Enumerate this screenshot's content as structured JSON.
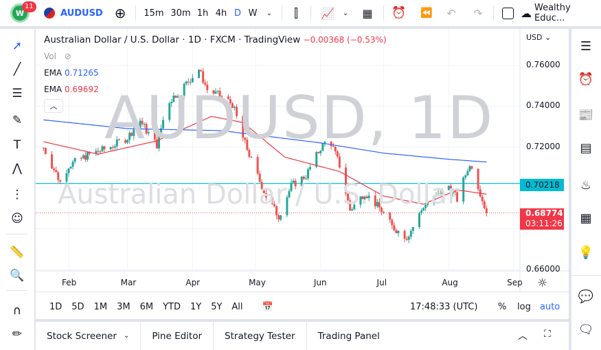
{
  "toolbar": {
    "notifications": "11",
    "logo": "logo-icon",
    "symbol": "AUDUSD",
    "intervals": [
      "15m",
      "30m",
      "1h",
      "4h",
      "D",
      "W"
    ],
    "active_interval": "D",
    "account": "Wealthy Educ..."
  },
  "legend": {
    "title": "Australian Dollar / U.S. Dollar · 1D · FXCM · TradingView",
    "change": "−0.00368 (−0.53%)",
    "vol": "Vol",
    "ema1_label": "EMA",
    "ema1_value": "0.71265",
    "ema2_label": "EMA",
    "ema2_value": "0.69692"
  },
  "watermark": {
    "line1": "AUDUSD, 1D",
    "line2": "Australian Dollar / U.S. Dollar"
  },
  "price_axis": {
    "currency": "USD",
    "ticks": [
      "0.76000",
      "0.74000",
      "0.72000",
      "0.66000"
    ],
    "hline_label": "0.70218",
    "last_price": "0.68774",
    "countdown": "03:11:26"
  },
  "time_axis": {
    "labels": [
      "Feb",
      "Mar",
      "Apr",
      "May",
      "Jun",
      "Jul",
      "Aug",
      "Sep"
    ]
  },
  "range_bar": {
    "ranges": [
      "1D",
      "5D",
      "1M",
      "3M",
      "6M",
      "YTD",
      "1Y",
      "5Y",
      "All"
    ],
    "time": "17:48:33 (UTC)",
    "percent": "%",
    "log": "log",
    "auto": "auto"
  },
  "bottom_tabs": [
    "Stock Screener",
    "Pine Editor",
    "Strategy Tester",
    "Trading Panel"
  ],
  "colors": {
    "up": "#26a69a",
    "down": "#ef5350",
    "ema_slow": "#2962ff",
    "ema_fast": "#f23645",
    "hline": "#00bcd4",
    "accent": "#2962ff"
  },
  "chart_data": {
    "type": "candlestick",
    "ylim": [
      0.655,
      0.768
    ],
    "yticks": [
      0.76,
      0.74,
      0.72,
      0.7,
      0.68,
      0.66
    ],
    "xticks": [
      "2022-02-01",
      "2022-03-01",
      "2022-04-01",
      "2022-05-01",
      "2022-06-01",
      "2022-07-01",
      "2022-08-01",
      "2022-09-01"
    ],
    "close_path": [
      [
        "2022-01-20",
        0.7196
      ],
      [
        "2022-01-28",
        0.7028
      ],
      [
        "2022-02-01",
        0.711
      ],
      [
        "2022-02-10",
        0.716
      ],
      [
        "2022-02-20",
        0.7196
      ],
      [
        "2022-03-01",
        0.7246
      ],
      [
        "2022-03-07",
        0.733
      ],
      [
        "2022-03-10",
        0.728
      ],
      [
        "2022-03-15",
        0.721
      ],
      [
        "2022-03-20",
        0.7415
      ],
      [
        "2022-03-28",
        0.75
      ],
      [
        "2022-04-04",
        0.758
      ],
      [
        "2022-04-08",
        0.748
      ],
      [
        "2022-04-15",
        0.7445
      ],
      [
        "2022-04-20",
        0.741
      ],
      [
        "2022-04-25",
        0.7245
      ],
      [
        "2022-05-01",
        0.708
      ],
      [
        "2022-05-06",
        0.696
      ],
      [
        "2022-05-12",
        0.686
      ],
      [
        "2022-05-18",
        0.701
      ],
      [
        "2022-05-25",
        0.706
      ],
      [
        "2022-06-01",
        0.7196
      ],
      [
        "2022-06-05",
        0.7246
      ],
      [
        "2022-06-10",
        0.711
      ],
      [
        "2022-06-15",
        0.689
      ],
      [
        "2022-06-22",
        0.6977
      ],
      [
        "2022-06-30",
        0.689
      ],
      [
        "2022-07-05",
        0.681
      ],
      [
        "2022-07-12",
        0.676
      ],
      [
        "2022-07-15",
        0.681
      ],
      [
        "2022-07-20",
        0.6911
      ],
      [
        "2022-07-27",
        0.6961
      ],
      [
        "2022-08-01",
        0.701
      ],
      [
        "2022-08-05",
        0.6944
      ],
      [
        "2022-08-10",
        0.7095
      ],
      [
        "2022-08-12",
        0.711
      ],
      [
        "2022-08-15",
        0.701
      ],
      [
        "2022-08-17",
        0.6944
      ],
      [
        "2022-08-19",
        0.6877
      ]
    ],
    "ema_slow": [
      [
        "2022-01-20",
        0.7333
      ],
      [
        "2022-03-01",
        0.729
      ],
      [
        "2022-04-15",
        0.728
      ],
      [
        "2022-06-01",
        0.722
      ],
      [
        "2022-07-01",
        0.717
      ],
      [
        "2022-08-01",
        0.714
      ],
      [
        "2022-08-19",
        0.71265
      ]
    ],
    "ema_fast": [
      [
        "2022-01-20",
        0.7226
      ],
      [
        "2022-02-15",
        0.7165
      ],
      [
        "2022-03-15",
        0.723
      ],
      [
        "2022-04-10",
        0.735
      ],
      [
        "2022-04-25",
        0.732
      ],
      [
        "2022-05-15",
        0.715
      ],
      [
        "2022-06-10",
        0.708
      ],
      [
        "2022-07-01",
        0.696
      ],
      [
        "2022-07-20",
        0.692
      ],
      [
        "2022-08-05",
        0.699
      ],
      [
        "2022-08-19",
        0.69692
      ]
    ],
    "hline": 0.70218,
    "last": 0.68774
  }
}
